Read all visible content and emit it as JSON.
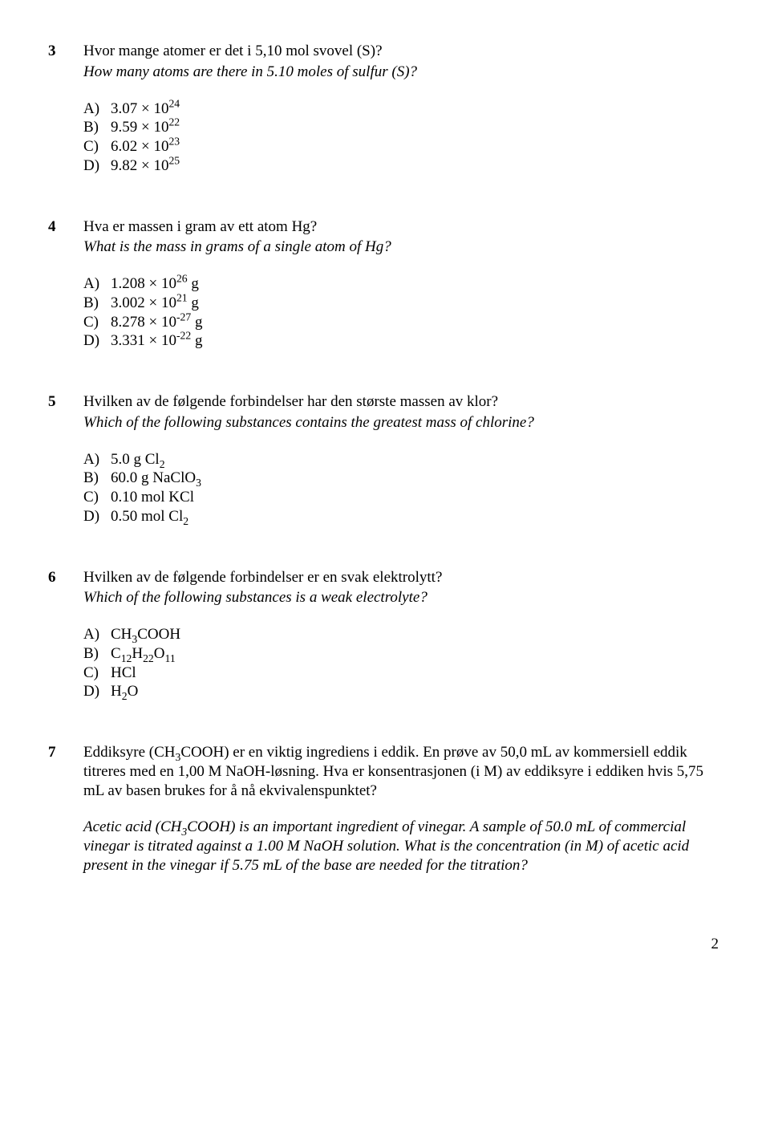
{
  "page_number": "2",
  "q3": {
    "num": "3",
    "prompt_no": "Hvor mange atomer er det i 5,10 mol svovel (S)?",
    "prompt_en": "How many atoms are there in 5.10 moles of sulfur (S)?",
    "A_label": "A)",
    "A_pre": "3.07 × 10",
    "A_sup": "24",
    "B_label": "B)",
    "B_pre": "9.59 × 10",
    "B_sup": "22",
    "C_label": "C)",
    "C_pre": "6.02 × 10",
    "C_sup": "23",
    "D_label": "D)",
    "D_pre": "9.82 × 10",
    "D_sup": "25"
  },
  "q4": {
    "num": "4",
    "prompt_no": "Hva er massen i gram av ett atom Hg?",
    "prompt_en": "What is the mass in grams of a single atom of Hg?",
    "A_label": "A)",
    "A_pre": "1.208 × 10",
    "A_sup": "26",
    "A_post": " g",
    "B_label": "B)",
    "B_pre": "3.002 × 10",
    "B_sup": "21",
    "B_post": " g",
    "C_label": "C)",
    "C_pre": "8.278 × 10",
    "C_sup": "-27",
    "C_post": " g",
    "D_label": "D)",
    "D_pre": "3.331 × 10",
    "D_sup": "-22",
    "D_post": " g"
  },
  "q5": {
    "num": "5",
    "prompt_no": "Hvilken av de følgende forbindelser har den største massen av klor?",
    "prompt_en": "Which of the following substances contains the greatest mass of chlorine?",
    "A_label": "A)",
    "A_pre": "5.0 g Cl",
    "A_sub": "2",
    "B_label": "B)",
    "B_pre": "60.0 g NaClO",
    "B_sub": "3",
    "C_label": "C)",
    "C_text": "0.10 mol KCl",
    "D_label": "D)",
    "D_pre": "0.50 mol Cl",
    "D_sub": "2"
  },
  "q6": {
    "num": "6",
    "prompt_no": "Hvilken av de følgende forbindelser er en svak elektrolytt?",
    "prompt_en": "Which of the following substances is a weak electrolyte?",
    "A_label": "A)",
    "A_p1": "CH",
    "A_s1": "3",
    "A_p2": "COOH",
    "B_label": "B)",
    "B_p1": "C",
    "B_s1": "12",
    "B_p2": "H",
    "B_s2": "22",
    "B_p3": "O",
    "B_s3": "11",
    "C_label": "C)",
    "C_text": "HCl",
    "D_label": "D)",
    "D_p1": "H",
    "D_s1": "2",
    "D_p2": "O"
  },
  "q7": {
    "num": "7",
    "no_p1a": "Eddiksyre (CH",
    "no_s1": "3",
    "no_p1b": "COOH) er en viktig ingrediens i eddik. En prøve av 50,0 mL av kommersiell eddik titreres med en 1,00 M NaOH-løsning. Hva er konsentrasjonen (i M) av eddiksyre i eddiken hvis 5,75 mL av basen brukes for å nå ekvivalenspunktet?",
    "en_p1a": "Acetic acid (CH",
    "en_s1": "3",
    "en_p1b": "COOH) is an important ingredient of vinegar. A sample of 50.0 mL of commercial vinegar is titrated against a 1.00 M NaOH solution. What is the concentration (in M) of acetic acid present in the vinegar if 5.75 mL of the base are needed for the titration?"
  }
}
